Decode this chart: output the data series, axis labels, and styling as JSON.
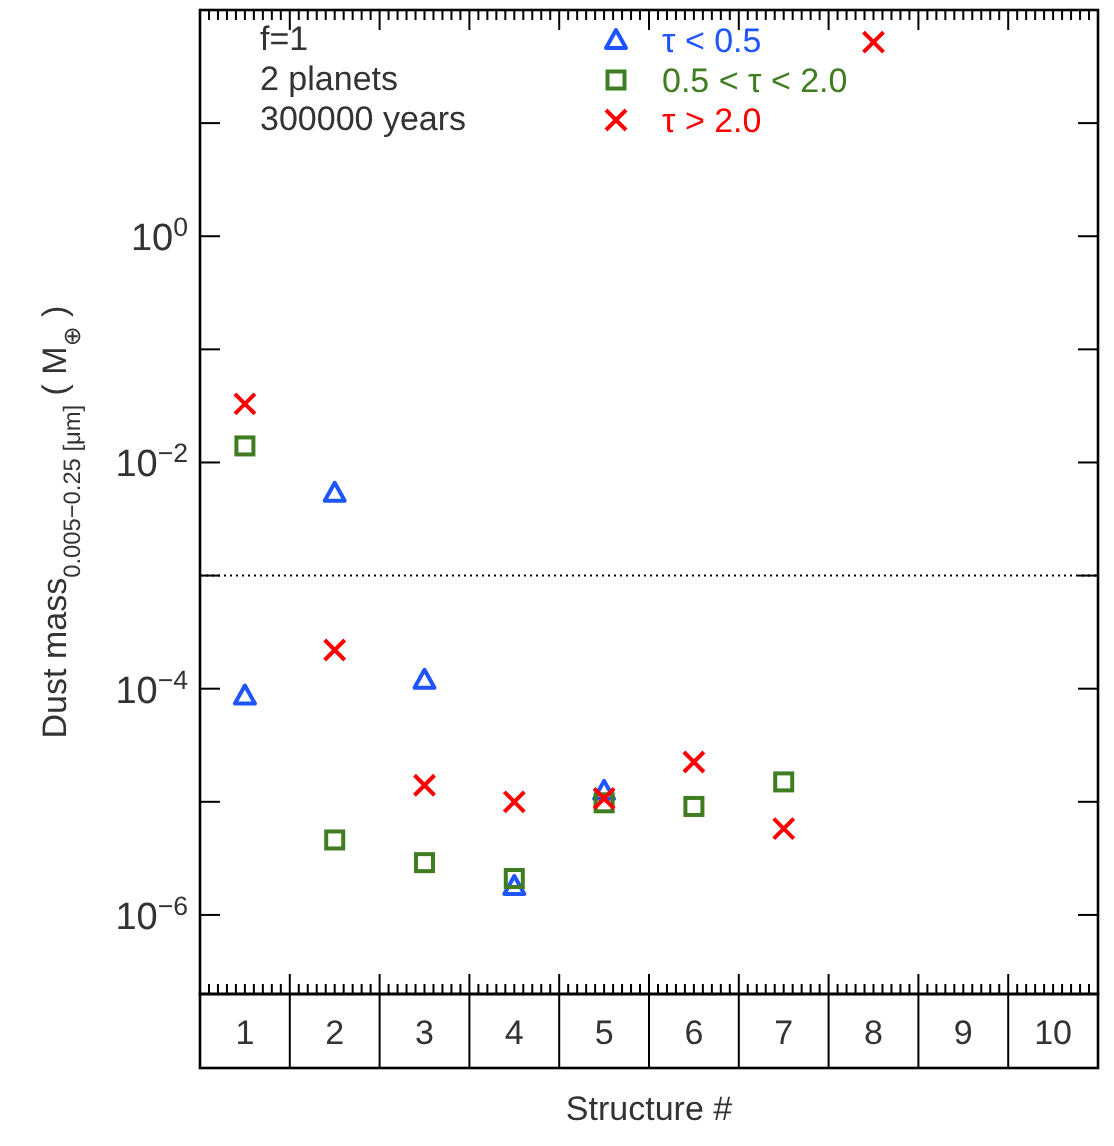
{
  "chart_data": {
    "type": "scatter",
    "xlabel": "Structure #",
    "ylabel": "Dust mass$_{0.005−0.25 [μm]}$ ( M$_{⊕}$ )",
    "categories": [
      "1",
      "2",
      "3",
      "4",
      "5",
      "6",
      "7",
      "8",
      "9",
      "10"
    ],
    "log": "y",
    "ylim": [
      2e-07,
      100
    ],
    "yticks": [
      {
        "value": 1e-06,
        "label": "10$^{−6}$"
      },
      {
        "value": 1e-05,
        "label": null
      },
      {
        "value": 0.0001,
        "label": "10$^{−4}$"
      },
      {
        "value": 0.001,
        "label": null
      },
      {
        "value": 0.01,
        "label": "10$^{−2}$"
      },
      {
        "value": 0.1,
        "label": null
      },
      {
        "value": 1,
        "label": "10$^{0}$"
      },
      {
        "value": 10,
        "label": null
      }
    ],
    "series": [
      {
        "name": "τ < 0.5",
        "color": "#1f55ff",
        "marker": "triangle",
        "values": [
          8.7e-05,
          0.0054,
          0.00012,
          1.8e-06,
          1.25e-05,
          null,
          null,
          null,
          null,
          null
        ]
      },
      {
        "name": "0.5 < τ < 2.0",
        "color": "#3f7d20",
        "marker": "square",
        "values": [
          0.014,
          4.6e-06,
          2.9e-06,
          2.1e-06,
          9.8e-06,
          9.1e-06,
          1.5e-05,
          null,
          null,
          null
        ]
      },
      {
        "name": "τ > 2.0",
        "color": "#ff0000",
        "marker": "cross",
        "values": [
          0.033,
          0.00022,
          1.4e-05,
          1e-05,
          1.07e-05,
          2.25e-05,
          5.8e-06,
          52,
          null,
          null
        ]
      }
    ],
    "ref_lines": [
      {
        "axis": "y",
        "value": 0.001,
        "line_style": "dotted",
        "color": "#000000"
      }
    ],
    "annotations": [
      "f=1",
      "2 planets",
      "300000 years"
    ],
    "legend": "top",
    "grid": false
  }
}
